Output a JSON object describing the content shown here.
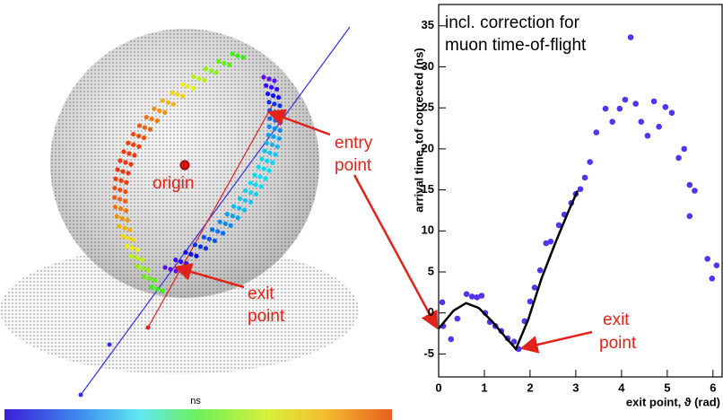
{
  "diagram": {
    "entry_label": [
      "entry",
      "point"
    ],
    "origin_label": "origin",
    "exit_label": [
      "exit",
      "point"
    ],
    "colorbar_label": "ns"
  },
  "chart_data": {
    "type": "scatter",
    "title": [
      "incl. correction for",
      "muon time-of-flight"
    ],
    "x_label": "exit point, ϑ (rad)",
    "y_label": "arrival time, tof corrected (ns)",
    "annotation": [
      "exit",
      "point"
    ],
    "xlim": [
      0,
      6.2
    ],
    "ylim": [
      -7.8,
      37.6
    ],
    "xticks": [
      0,
      1,
      2,
      3,
      4,
      5,
      6
    ],
    "yticks": [
      -5,
      0,
      5,
      10,
      15,
      20,
      25,
      30,
      35
    ],
    "series": [
      {
        "kind": "points",
        "color": "#5533ee",
        "x": [
          0.08,
          0.1,
          0.27,
          0.41,
          0.61,
          0.73,
          0.84,
          0.94,
          1.02,
          1.12,
          1.24,
          1.37,
          1.51,
          1.65,
          1.75,
          1.88,
          2.0,
          2.1,
          2.22,
          2.35,
          2.45,
          2.63,
          2.75,
          2.9,
          3.0,
          3.1,
          3.2,
          3.31,
          3.45,
          3.65,
          3.8,
          3.96,
          4.08,
          4.2,
          4.31,
          4.43,
          4.57,
          4.71,
          4.82,
          4.96,
          5.1,
          5.25,
          5.37,
          5.49,
          5.6,
          5.49,
          5.88,
          5.98,
          6.08
        ],
        "values": [
          1.3,
          -1.6,
          -3.2,
          -0.7,
          2.3,
          2.0,
          1.9,
          2.1,
          0,
          -1.1,
          -1.6,
          -2.2,
          -3.1,
          -3.5,
          -4.4,
          -1.0,
          1.4,
          3.1,
          5.2,
          8.5,
          8.7,
          10.7,
          12.0,
          13.4,
          14.5,
          15.1,
          16.5,
          18.4,
          22.0,
          24.9,
          23.3,
          24.9,
          26.0,
          33.6,
          25.5,
          23.3,
          21.6,
          25.8,
          22.7,
          25.1,
          24.4,
          18.9,
          20.0,
          15.6,
          14.9,
          11.8,
          6.6,
          4.2,
          5.8
        ]
      },
      {
        "kind": "line",
        "color": "#000000",
        "x": [
          0,
          0.33,
          0.6,
          0.88,
          1.18,
          1.47,
          1.69,
          1.96,
          2.25,
          2.55,
          2.84,
          3.04
        ],
        "values": [
          -1.9,
          0.3,
          1.2,
          0.6,
          -1.1,
          -3.0,
          -4.4,
          -0.8,
          4.2,
          8.5,
          12.4,
          14.9
        ]
      }
    ]
  }
}
